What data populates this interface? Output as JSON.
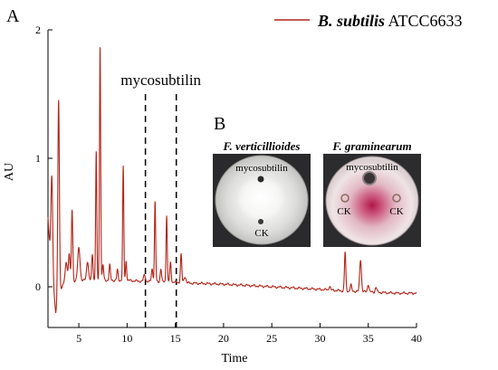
{
  "panel_a_letter": "A",
  "panel_b_letter": "B",
  "legend": {
    "italic_part": "B. subtilis",
    "plain_part": " ATCC6633",
    "color": "#b22418"
  },
  "chart_data": {
    "type": "line",
    "title": "",
    "xlabel": "Time",
    "ylabel": "AU",
    "xlim": [
      1.8,
      40
    ],
    "ylim": [
      -0.3,
      2.0
    ],
    "x_ticks": [
      5,
      10,
      15,
      20,
      25,
      30,
      35,
      40
    ],
    "x_tick_labels": [
      "5",
      "10",
      "15",
      "20",
      "25",
      "30",
      "35",
      "40"
    ],
    "y_ticks": [
      0,
      1,
      2
    ],
    "y_tick_labels": [
      "0",
      "1",
      "2"
    ],
    "grid": false,
    "legend_position": "top-right",
    "series": [
      {
        "name": "B. subtilis ATCC6633",
        "color": "#b22418",
        "baseline": [
          [
            1.8,
            0.55
          ],
          [
            2.0,
            0.3
          ],
          [
            2.3,
            0.05
          ],
          [
            2.6,
            -0.2
          ],
          [
            2.9,
            -0.05
          ],
          [
            3.5,
            0.04
          ],
          [
            5,
            0.05
          ],
          [
            8,
            0.05
          ],
          [
            10,
            0.05
          ],
          [
            12,
            0.04
          ],
          [
            14,
            0.04
          ],
          [
            16,
            0.03
          ],
          [
            20,
            0.02
          ],
          [
            25,
            0.0
          ],
          [
            30,
            -0.02
          ],
          [
            32,
            -0.03
          ],
          [
            35,
            -0.04
          ],
          [
            38,
            -0.05
          ],
          [
            40,
            -0.05
          ]
        ],
        "peaks": [
          {
            "x": 2.2,
            "y": 0.72,
            "w": 0.09
          },
          {
            "x": 2.9,
            "y": 1.5,
            "w": 0.08
          },
          {
            "x": 3.7,
            "y": 0.15,
            "w": 0.1
          },
          {
            "x": 4.0,
            "y": 0.22,
            "w": 0.08
          },
          {
            "x": 4.3,
            "y": 0.55,
            "w": 0.07
          },
          {
            "x": 5.0,
            "y": 0.25,
            "w": 0.12
          },
          {
            "x": 5.9,
            "y": 0.15,
            "w": 0.1
          },
          {
            "x": 6.4,
            "y": 0.2,
            "w": 0.07
          },
          {
            "x": 6.8,
            "y": 1.0,
            "w": 0.06
          },
          {
            "x": 7.2,
            "y": 1.82,
            "w": 0.06
          },
          {
            "x": 7.5,
            "y": 0.12,
            "w": 0.07
          },
          {
            "x": 8.2,
            "y": 0.12,
            "w": 0.07
          },
          {
            "x": 9.0,
            "y": 0.08,
            "w": 0.07
          },
          {
            "x": 9.6,
            "y": 0.88,
            "w": 0.06
          },
          {
            "x": 9.9,
            "y": 0.15,
            "w": 0.06
          },
          {
            "x": 11.8,
            "y": 0.05,
            "w": 0.1
          },
          {
            "x": 12.6,
            "y": 0.1,
            "w": 0.08
          },
          {
            "x": 12.9,
            "y": 0.62,
            "w": 0.06
          },
          {
            "x": 13.5,
            "y": 0.1,
            "w": 0.07
          },
          {
            "x": 14.1,
            "y": 0.52,
            "w": 0.06
          },
          {
            "x": 14.5,
            "y": 0.15,
            "w": 0.07
          },
          {
            "x": 15.6,
            "y": 0.22,
            "w": 0.07
          },
          {
            "x": 16.0,
            "y": 0.05,
            "w": 0.1
          },
          {
            "x": 31.0,
            "y": 0.03,
            "w": 0.08
          },
          {
            "x": 32.6,
            "y": 0.3,
            "w": 0.07
          },
          {
            "x": 33.2,
            "y": 0.05,
            "w": 0.07
          },
          {
            "x": 34.2,
            "y": 0.25,
            "w": 0.09
          },
          {
            "x": 35.0,
            "y": 0.06,
            "w": 0.08
          },
          {
            "x": 35.8,
            "y": 0.04,
            "w": 0.08
          }
        ]
      }
    ],
    "annotations": [
      {
        "text": "mycosubtilin",
        "x_start": 11.9,
        "x_end": 15.1,
        "style": "dashed-vertical-lines"
      }
    ]
  },
  "inset": {
    "plates": [
      {
        "title": "F. verticillioides",
        "top_label": "mycosubtilin",
        "bottom_label": "CK",
        "appearance": "white-mycelium"
      },
      {
        "title": "F. graminearum",
        "top_label": "mycosubtilin",
        "left_label": "CK",
        "right_label": "CK",
        "appearance": "pink-mycelium"
      }
    ]
  }
}
